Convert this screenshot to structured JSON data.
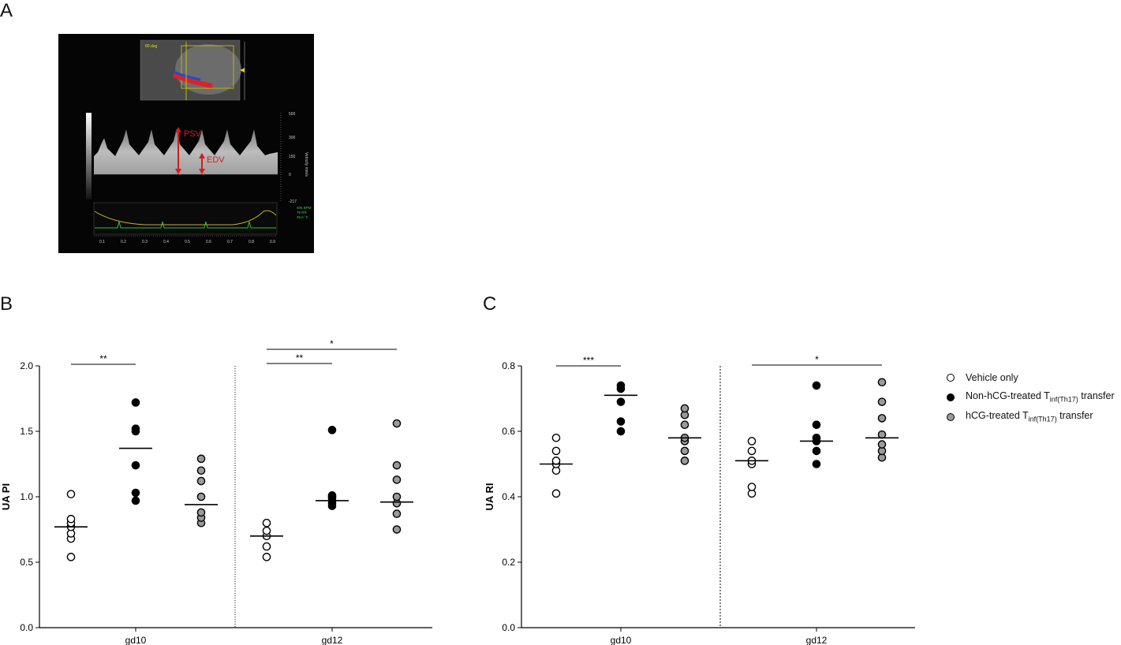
{
  "panels": {
    "a": "A",
    "b": "B",
    "c": "C"
  },
  "ultrasound": {
    "label_psv": "PSV",
    "label_edv": "EDV",
    "scale_labels": [
      "500",
      "300",
      "150",
      "0",
      "-217"
    ],
    "axis_title": "Velocity mm/s",
    "time_ticks": [
      "0.1",
      "0.2",
      "0.3",
      "0.4",
      "0.5",
      "0.6",
      "0.7",
      "0.8",
      "0.9"
    ],
    "top_label": "80 deg",
    "vitals": [
      "406 BPM",
      "78 RR",
      "35.6 °C"
    ]
  },
  "legend": {
    "items": [
      {
        "prefix": "Vehicle only",
        "sub": "",
        "suffix": "",
        "fill": "#ffffff"
      },
      {
        "prefix": "Non-hCG-treated T",
        "sub": "inf(Th17)",
        "suffix": " transfer",
        "fill": "#000000"
      },
      {
        "prefix": "hCG-treated T",
        "sub": "inf(Th17)",
        "suffix": " transfer",
        "fill": "#9a9a9a"
      }
    ]
  },
  "chart_data": [
    {
      "type": "scatter",
      "ylabel": "UA PI",
      "ylim": [
        0,
        2.0
      ],
      "yticks": [
        "0.0",
        "0.5",
        "1.0",
        "1.5",
        "2.0"
      ],
      "categories": [
        "gd10",
        "gd12"
      ],
      "series": [
        {
          "name": "Vehicle only",
          "color": "#ffffff",
          "gd10": [
            0.54,
            0.68,
            0.72,
            0.77,
            0.8,
            0.83,
            1.02
          ],
          "gd10_mean": 0.77,
          "gd12": [
            0.54,
            0.62,
            0.7,
            0.74,
            0.8
          ],
          "gd12_mean": 0.7
        },
        {
          "name": "Non-hCG-treated Tinf(Th17) transfer",
          "color": "#000000",
          "gd10": [
            0.97,
            1.03,
            1.24,
            1.5,
            1.52,
            1.72
          ],
          "gd10_mean": 1.37,
          "gd12": [
            0.93,
            0.95,
            0.97,
            0.99,
            1.0,
            1.01,
            1.51
          ],
          "gd12_mean": 0.97
        },
        {
          "name": "hCG-treated Tinf(Th17) transfer",
          "color": "#9a9a9a",
          "gd10": [
            0.8,
            0.84,
            0.88,
            1.0,
            1.12,
            1.2,
            1.29
          ],
          "gd10_mean": 0.94,
          "gd12": [
            0.75,
            0.87,
            0.95,
            1.0,
            1.13,
            1.24,
            1.56
          ],
          "gd12_mean": 0.96
        }
      ],
      "significance": [
        {
          "group": "gd10",
          "from": 0,
          "to": 1,
          "label": "**",
          "y": 2.0
        },
        {
          "group": "gd12",
          "from": 0,
          "to": 1,
          "label": "**",
          "y": 2.0
        },
        {
          "group": "gd12",
          "from": 0,
          "to": 2,
          "label": "*",
          "y": 2.1
        }
      ]
    },
    {
      "type": "scatter",
      "ylabel": "UA RI",
      "ylim": [
        0,
        0.8
      ],
      "yticks": [
        "0.0",
        "0.2",
        "0.4",
        "0.6",
        "0.8"
      ],
      "categories": [
        "gd10",
        "gd12"
      ],
      "series": [
        {
          "name": "Vehicle only",
          "color": "#ffffff",
          "gd10": [
            0.41,
            0.48,
            0.5,
            0.51,
            0.54,
            0.58
          ],
          "gd10_mean": 0.5,
          "gd12": [
            0.41,
            0.43,
            0.5,
            0.51,
            0.54,
            0.57
          ],
          "gd12_mean": 0.51
        },
        {
          "name": "Non-hCG-treated Tinf(Th17) transfer",
          "color": "#000000",
          "gd10": [
            0.6,
            0.63,
            0.69,
            0.73,
            0.74
          ],
          "gd10_mean": 0.71,
          "gd12": [
            0.5,
            0.54,
            0.57,
            0.58,
            0.62,
            0.74
          ],
          "gd12_mean": 0.57
        },
        {
          "name": "hCG-treated Tinf(Th17) transfer",
          "color": "#9a9a9a",
          "gd10": [
            0.51,
            0.54,
            0.57,
            0.58,
            0.62,
            0.65,
            0.67
          ],
          "gd10_mean": 0.58,
          "gd12": [
            0.52,
            0.54,
            0.56,
            0.59,
            0.64,
            0.69,
            0.75
          ],
          "gd12_mean": 0.58
        }
      ],
      "significance": [
        {
          "group": "gd10",
          "from": 0,
          "to": 1,
          "label": "***",
          "y": 0.8
        },
        {
          "group": "gd12",
          "from": 0,
          "to": 2,
          "label": "*",
          "y": 0.8
        }
      ]
    }
  ]
}
